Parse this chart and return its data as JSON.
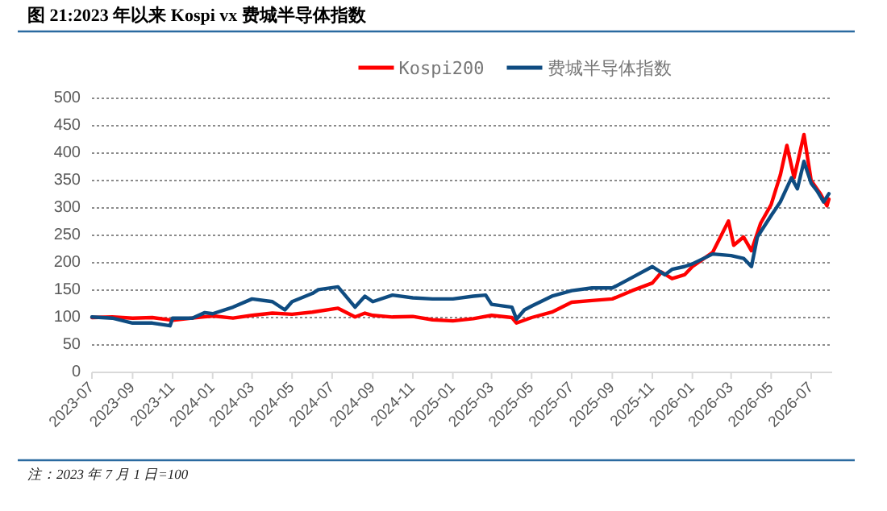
{
  "chart_data": {
    "type": "line",
    "title": "图 21:2023 年以来  Kospi vx  费城半导体指数",
    "annotations": [
      "注：2023 年 7 月 1 日=100"
    ],
    "xlim": [
      "2023-07-01",
      "2026-08-02"
    ],
    "xticks": [
      "2023-07",
      "2023-09",
      "2023-11",
      "2024-01",
      "2024-03",
      "2024-05",
      "2024-07",
      "2024-09",
      "2024-11",
      "2025-01",
      "2025-03",
      "2025-05",
      "2025-07",
      "2025-09",
      "2025-11",
      "2026-01",
      "2026-03",
      "2026-05",
      "2026-07"
    ],
    "ylim": [
      0,
      500
    ],
    "yticks": [
      0,
      50,
      100,
      150,
      200,
      250,
      300,
      350,
      400,
      450,
      500
    ],
    "grid": "y",
    "legend": "top",
    "line_style": "solid",
    "marker": "none",
    "series": [
      {
        "name": "Kospi200",
        "color": "#ff0000",
        "x": [
          "2023-07-01",
          "2023-08-01",
          "2023-09-01",
          "2023-10-01",
          "2023-11-01",
          "2023-12-01",
          "2024-01-01",
          "2024-02-01",
          "2024-03-01",
          "2024-04-01",
          "2024-05-01",
          "2024-06-01",
          "2024-07-10",
          "2024-08-05",
          "2024-08-20",
          "2024-09-01",
          "2024-10-01",
          "2024-11-01",
          "2024-12-01",
          "2025-01-01",
          "2025-02-01",
          "2025-03-01",
          "2025-04-01",
          "2025-04-08",
          "2025-05-01",
          "2025-06-01",
          "2025-07-01",
          "2025-08-01",
          "2025-09-01",
          "2025-10-01",
          "2025-11-01",
          "2025-11-15",
          "2025-12-01",
          "2025-12-20",
          "2026-01-01",
          "2026-02-01",
          "2026-02-25",
          "2026-03-05",
          "2026-03-20",
          "2026-04-01",
          "2026-04-15",
          "2026-05-01",
          "2026-05-15",
          "2026-05-25",
          "2026-06-05",
          "2026-06-20",
          "2026-07-01",
          "2026-07-15",
          "2026-07-25",
          "2026-07-28"
        ],
        "values": [
          100,
          101,
          99,
          100,
          95,
          99,
          103,
          99,
          104,
          108,
          106,
          110,
          117,
          101,
          108,
          104,
          101,
          102,
          96,
          94,
          98,
          104,
          100,
          90,
          100,
          110,
          128,
          131,
          134,
          149,
          163,
          183,
          171,
          178,
          193,
          219,
          276,
          232,
          247,
          222,
          272,
          306,
          360,
          414,
          355,
          434,
          350,
          326,
          304,
          316
        ]
      },
      {
        "name": "费城半导体指数",
        "color": "#0f4c81",
        "x": [
          "2023-07-01",
          "2023-08-01",
          "2023-09-01",
          "2023-10-01",
          "2023-10-28",
          "2023-11-01",
          "2023-12-01",
          "2023-12-20",
          "2024-01-01",
          "2024-02-01",
          "2024-03-01",
          "2024-04-01",
          "2024-04-20",
          "2024-05-01",
          "2024-06-01",
          "2024-06-10",
          "2024-07-10",
          "2024-08-05",
          "2024-08-20",
          "2024-09-01",
          "2024-10-01",
          "2024-11-01",
          "2024-12-01",
          "2025-01-01",
          "2025-02-01",
          "2025-02-20",
          "2025-03-01",
          "2025-04-01",
          "2025-04-08",
          "2025-04-20",
          "2025-05-01",
          "2025-06-01",
          "2025-07-01",
          "2025-08-01",
          "2025-09-01",
          "2025-10-01",
          "2025-11-01",
          "2025-11-20",
          "2025-12-01",
          "2025-12-20",
          "2026-01-01",
          "2026-02-01",
          "2026-03-01",
          "2026-03-20",
          "2026-04-01",
          "2026-04-10",
          "2026-05-01",
          "2026-05-15",
          "2026-06-01",
          "2026-06-10",
          "2026-06-20",
          "2026-07-01",
          "2026-07-10",
          "2026-07-20",
          "2026-07-28"
        ],
        "values": [
          101,
          99,
          90,
          90,
          85,
          99,
          99,
          109,
          107,
          119,
          134,
          129,
          114,
          129,
          144,
          151,
          156,
          119,
          139,
          129,
          141,
          136,
          134,
          134,
          139,
          141,
          124,
          119,
          97,
          114,
          121,
          139,
          149,
          154,
          154,
          173,
          193,
          178,
          188,
          193,
          198,
          216,
          213,
          208,
          193,
          247,
          286,
          311,
          355,
          335,
          385,
          345,
          331,
          311,
          326
        ]
      }
    ]
  }
}
